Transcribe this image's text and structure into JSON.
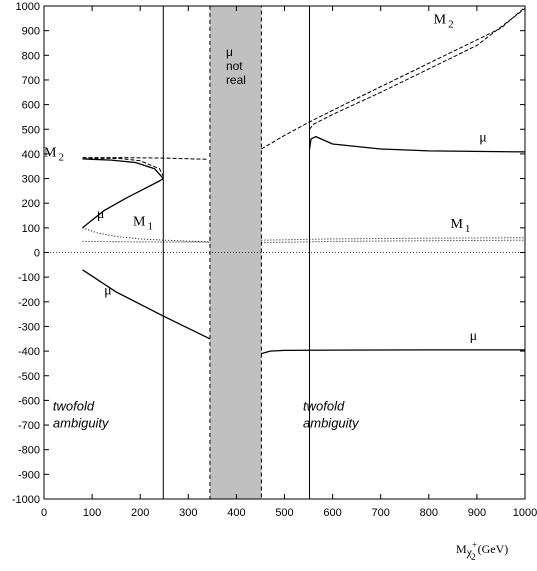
{
  "chart_data": {
    "type": "line",
    "title": "",
    "xlabel": "M",
    "xlabel_sub": "χ",
    "xlabel_sup": "+",
    "xlabel_subsub": "2",
    "xlabel_unit": "(GeV)",
    "ylabel": "",
    "xlim": [
      0,
      1000
    ],
    "ylim": [
      -1000,
      1000
    ],
    "x_ticks": [
      0,
      100,
      200,
      300,
      400,
      500,
      600,
      700,
      800,
      900,
      1000
    ],
    "y_ticks": [
      1000,
      900,
      800,
      700,
      600,
      500,
      400,
      300,
      200,
      100,
      0,
      -100,
      -200,
      -300,
      -400,
      -500,
      -600,
      -700,
      -800,
      -900,
      -1000
    ],
    "grid": false,
    "shaded_region": {
      "x0": 345,
      "x1": 452,
      "label_lines": [
        "μ",
        "not",
        "real"
      ]
    },
    "vertical_lines": [
      248,
      552
    ],
    "zero_line": 0,
    "series": [
      {
        "name": "M₂",
        "style": "dashed",
        "x": [
          80,
          150,
          250,
          340
        ],
        "y": [
          385,
          385,
          383,
          378
        ]
      },
      {
        "name": "M₂",
        "style": "dashed",
        "x": [
          452,
          500,
          552,
          650,
          750,
          850,
          950,
          1000
        ],
        "y": [
          420,
          475,
          530,
          625,
          720,
          815,
          910,
          995
        ]
      },
      {
        "name": "μ",
        "style": "solid",
        "x": [
          80,
          125,
          170,
          210,
          240,
          248
        ],
        "y": [
          100,
          170,
          220,
          260,
          290,
          300
        ]
      },
      {
        "name": "μ",
        "style": "solid",
        "x": [
          248,
          230,
          190,
          140,
          100,
          80
        ],
        "y": [
          300,
          340,
          365,
          375,
          378,
          380
        ]
      },
      {
        "name": "M₂",
        "style": "dashed",
        "x": [
          80,
          120,
          160,
          200,
          240,
          248
        ],
        "y": [
          380,
          382,
          381,
          372,
          340,
          310
        ]
      },
      {
        "name": "M₁",
        "style": "dotted",
        "x": [
          80,
          110,
          150,
          200,
          250,
          300,
          345
        ],
        "y": [
          100,
          80,
          65,
          55,
          50,
          46,
          43
        ]
      },
      {
        "name": "M₁",
        "style": "dotted",
        "x": [
          80,
          200,
          345
        ],
        "y": [
          45,
          43,
          42
        ]
      },
      {
        "name": "M₁",
        "style": "dotted",
        "x": [
          452,
          600,
          800,
          1000
        ],
        "y": [
          40,
          45,
          48,
          50
        ]
      },
      {
        "name": "M₁",
        "style": "dotted",
        "x": [
          452,
          600,
          800,
          1000
        ],
        "y": [
          50,
          55,
          58,
          60
        ]
      },
      {
        "name": "μ",
        "style": "solid",
        "x": [
          80,
          150,
          250,
          345
        ],
        "y": [
          -70,
          -160,
          -260,
          -350
        ]
      },
      {
        "name": "μ",
        "style": "solid",
        "x": [
          452,
          470,
          500,
          600,
          800,
          1000
        ],
        "y": [
          -410,
          -400,
          -397,
          -396,
          -395,
          -395
        ]
      },
      {
        "name": "μ",
        "style": "solid",
        "x": [
          552,
          555,
          565,
          600,
          700,
          800,
          1000
        ],
        "y": [
          420,
          460,
          470,
          440,
          420,
          412,
          408
        ]
      },
      {
        "name": "M₂",
        "style": "dashed",
        "x": [
          552,
          560,
          600,
          700,
          800,
          900,
          1000
        ],
        "y": [
          500,
          520,
          560,
          650,
          745,
          840,
          990
        ]
      }
    ],
    "annotations": [
      {
        "text": "M",
        "sub": "2",
        "x": 0,
        "y": 390
      },
      {
        "text": "μ",
        "x": 110,
        "y": 140
      },
      {
        "text": "M",
        "sub": "1",
        "x": 185,
        "y": 110
      },
      {
        "text": "μ",
        "x": 125,
        "y": -170
      },
      {
        "text": "M",
        "sub": "2",
        "x": 810,
        "y": 930
      },
      {
        "text": "μ",
        "x": 905,
        "y": 450
      },
      {
        "text": "M",
        "sub": "1",
        "x": 845,
        "y": 100
      },
      {
        "text": "μ",
        "x": 885,
        "y": -355
      }
    ],
    "region_labels": [
      {
        "lines": [
          "twofold",
          "ambiguity"
        ],
        "x": 110,
        "y": -640
      },
      {
        "lines": [
          "twofold",
          "ambiguity"
        ],
        "x": 630,
        "y": -640
      }
    ]
  }
}
